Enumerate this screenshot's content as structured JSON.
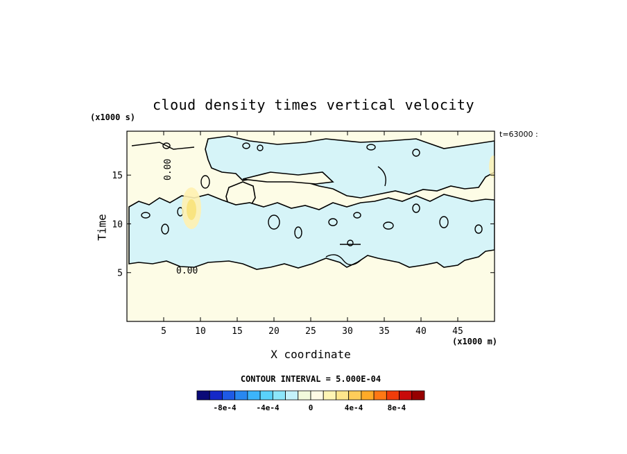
{
  "chart_data": {
    "type": "heatmap",
    "title": "cloud density times vertical velocity",
    "xlabel": "X coordinate",
    "ylabel": "Time",
    "x_unit": "(x1000 m)",
    "y_unit": "(x1000 s)",
    "time_stamp": "t=63000 :",
    "xlim": [
      0,
      50
    ],
    "ylim": [
      0,
      19.5
    ],
    "x_ticks": [
      5,
      10,
      15,
      20,
      25,
      30,
      35,
      40,
      45
    ],
    "y_ticks": [
      5,
      10,
      15
    ],
    "contour_interval_label": "CONTOUR INTERVAL = 5.000E-04",
    "contour_labels": [
      "0.00",
      "0.00"
    ],
    "colorbar": {
      "levels": [
        "-8e-4",
        "-4e-4",
        "0",
        "4e-4",
        "8e-4"
      ],
      "colors": [
        "#0a0a78",
        "#1428c8",
        "#1e5ae6",
        "#2887f0",
        "#3cb4fa",
        "#5ad2fa",
        "#8ce6fa",
        "#c4f2fa",
        "#f2fadc",
        "#fffae6",
        "#fff5b4",
        "#ffe68c",
        "#ffcd5a",
        "#ffaa28",
        "#ff7814",
        "#f03c0a",
        "#c80a0a",
        "#960000"
      ]
    },
    "regions": [
      {
        "name": "zero-background",
        "value": 0,
        "color": "#fdfce6"
      },
      {
        "name": "negative-upper-band",
        "value": -0.0001,
        "color": "#d6f4f8"
      },
      {
        "name": "negative-middle-band",
        "value": -0.0001,
        "color": "#d6f4f8"
      },
      {
        "name": "positive-peak",
        "value": 0.0004,
        "color": "#f8e27a"
      }
    ]
  }
}
